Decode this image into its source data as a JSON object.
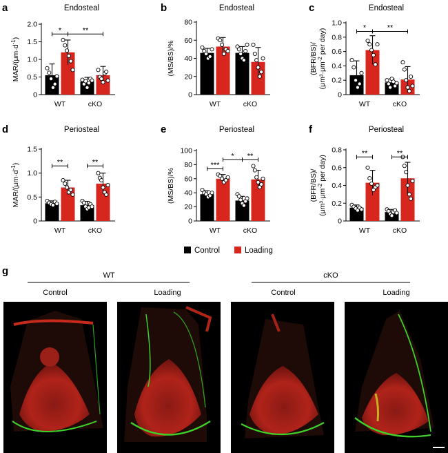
{
  "colors": {
    "control": "#000000",
    "loading": "#d7261e",
    "micrograph_bg": "#000000"
  },
  "chart_data": [
    {
      "panel": "a",
      "type": "bar",
      "title": "Endosteal",
      "ylabel": [
        "MAR/(μm·d",
        "-1",
        ")"
      ],
      "categories": [
        "WT",
        "cKO"
      ],
      "ylim": [
        0,
        2.0
      ],
      "yticks": [
        "0",
        "0.5",
        "1.0",
        "1.5",
        "2.0"
      ],
      "series": [
        {
          "name": "Control",
          "values": [
            0.55,
            0.37
          ],
          "errors": [
            0.32,
            0.12
          ],
          "points": [
            [
              0.75,
              0.62,
              0.45,
              0.2,
              0.3,
              0.52
            ],
            [
              0.42,
              0.3,
              0.38,
              0.2,
              0.33,
              0.45,
              0.4
            ]
          ]
        },
        {
          "name": "Loading",
          "values": [
            1.2,
            0.55
          ],
          "errors": [
            0.35,
            0.25
          ],
          "points": [
            [
              1.55,
              1.4,
              1.25,
              1.1,
              0.95,
              0.7
            ],
            [
              0.7,
              0.5,
              0.45,
              0.35,
              0.6,
              0.65,
              0.4
            ]
          ]
        }
      ],
      "brackets": [
        {
          "from": [
            0,
            0
          ],
          "to": [
            0,
            1
          ],
          "label": "*",
          "y": 1.72
        },
        {
          "from": [
            0,
            1
          ],
          "to": [
            1,
            1
          ],
          "label": "**",
          "y": 1.72
        }
      ]
    },
    {
      "panel": "b",
      "type": "bar",
      "title": "Endosteal",
      "ylabel": [
        "(MS/BS)/%"
      ],
      "categories": [
        "WT",
        "cKO"
      ],
      "ylim": [
        0,
        80
      ],
      "yticks": [
        "0",
        "20",
        "40",
        "60",
        "80"
      ],
      "series": [
        {
          "name": "Control",
          "values": [
            46,
            46
          ],
          "errors": [
            5,
            7
          ],
          "points": [
            [
              52,
              48,
              45,
              40,
              42,
              50
            ],
            [
              53,
              50,
              45,
              40,
              38,
              48,
              55
            ]
          ]
        },
        {
          "name": "Loading",
          "values": [
            53,
            36
          ],
          "errors": [
            10,
            16
          ],
          "points": [
            [
              62,
              60,
              55,
              45,
              50,
              48
            ],
            [
              55,
              45,
              38,
              30,
              20,
              25,
              40
            ]
          ]
        }
      ],
      "brackets": []
    },
    {
      "panel": "c",
      "type": "bar",
      "title": "Endosteal",
      "ylabel": [
        "(BFR/BS)/",
        "(μm³·μm",
        "-2",
        " per day)"
      ],
      "categories": [
        "WT",
        "cKO"
      ],
      "ylim": [
        0,
        1.0
      ],
      "yticks": [
        "0",
        "0.2",
        "0.4",
        "0.6",
        "0.8",
        "1.0"
      ],
      "series": [
        {
          "name": "Control",
          "values": [
            0.27,
            0.17
          ],
          "errors": [
            0.2,
            0.05
          ],
          "points": [
            [
              0.48,
              0.38,
              0.2,
              0.1,
              0.15,
              0.3
            ],
            [
              0.2,
              0.15,
              0.1,
              0.22,
              0.18,
              0.12,
              0.16
            ]
          ]
        },
        {
          "name": "Loading",
          "values": [
            0.62,
            0.21
          ],
          "errors": [
            0.2,
            0.18
          ],
          "points": [
            [
              0.75,
              0.7,
              0.62,
              0.55,
              0.42,
              0.7
            ],
            [
              0.45,
              0.35,
              0.2,
              0.1,
              0.05,
              0.25,
              0.12
            ]
          ]
        }
      ],
      "brackets": [
        {
          "from": [
            0,
            0
          ],
          "to": [
            0,
            1
          ],
          "label": "*",
          "y": 0.88
        },
        {
          "from": [
            0,
            1
          ],
          "to": [
            1,
            1
          ],
          "label": "**",
          "y": 0.88
        }
      ]
    },
    {
      "panel": "d",
      "type": "bar",
      "title": "Periosteal",
      "ylabel": [
        "MAR/(μm·d",
        "-1",
        ")"
      ],
      "categories": [
        "WT",
        "cKO"
      ],
      "ylim": [
        0,
        1.5
      ],
      "yticks": [
        "0",
        "0.5",
        "1.0",
        "1.5"
      ],
      "series": [
        {
          "name": "Control",
          "values": [
            0.37,
            0.33
          ],
          "errors": [
            0.05,
            0.08
          ],
          "points": [
            [
              0.42,
              0.38,
              0.35,
              0.33,
              0.4,
              0.36
            ],
            [
              0.42,
              0.38,
              0.3,
              0.25,
              0.28,
              0.35,
              0.3
            ]
          ]
        },
        {
          "name": "Loading",
          "values": [
            0.7,
            0.78
          ],
          "errors": [
            0.15,
            0.22
          ],
          "points": [
            [
              0.85,
              0.78,
              0.7,
              0.6,
              0.65,
              0.55
            ],
            [
              1.0,
              0.9,
              0.85,
              0.7,
              0.6,
              0.55,
              0.75
            ]
          ]
        }
      ],
      "brackets": [
        {
          "from": [
            0,
            0
          ],
          "to": [
            0,
            1
          ],
          "label": "**",
          "y": 1.15
        },
        {
          "from": [
            1,
            0
          ],
          "to": [
            1,
            1
          ],
          "label": "**",
          "y": 1.15
        }
      ]
    },
    {
      "panel": "e",
      "type": "bar",
      "title": "Periosteal",
      "ylabel": [
        "(MS/BS)/%"
      ],
      "categories": [
        "WT",
        "cKO"
      ],
      "ylim": [
        0,
        100
      ],
      "yticks": [
        "0",
        "20",
        "40",
        "60",
        "80",
        "100"
      ],
      "series": [
        {
          "name": "Control",
          "values": [
            38,
            29
          ],
          "errors": [
            5,
            6
          ],
          "points": [
            [
              44,
              40,
              38,
              34,
              36,
              40
            ],
            [
              38,
              35,
              30,
              25,
              22,
              28,
              32
            ]
          ]
        },
        {
          "name": "Loading",
          "values": [
            60,
            59
          ],
          "errors": [
            6,
            13
          ],
          "points": [
            [
              66,
              64,
              60,
              55,
              58,
              62
            ],
            [
              78,
              72,
              62,
              55,
              48,
              52,
              60
            ]
          ]
        }
      ],
      "brackets": [
        {
          "from": [
            0,
            0
          ],
          "to": [
            0,
            1
          ],
          "label": "***",
          "y": 74
        },
        {
          "from": [
            1,
            0
          ],
          "to": [
            1,
            1
          ],
          "label": "**",
          "y": 87
        },
        {
          "from": [
            0,
            1
          ],
          "to": [
            1,
            0
          ],
          "label": "*",
          "y": 87
        }
      ]
    },
    {
      "panel": "f",
      "type": "bar",
      "title": "Periosteal",
      "ylabel": [
        "(BFR/BS)/",
        "(μm³·μm",
        "-2",
        " per day)"
      ],
      "categories": [
        "WT",
        "cKO"
      ],
      "ylim": [
        0,
        0.8
      ],
      "yticks": [
        "0",
        "0.2",
        "0.4",
        "0.6",
        "0.8"
      ],
      "series": [
        {
          "name": "Control",
          "values": [
            0.15,
            0.1
          ],
          "errors": [
            0.03,
            0.03
          ],
          "points": [
            [
              0.18,
              0.16,
              0.14,
              0.12,
              0.15,
              0.13
            ],
            [
              0.13,
              0.11,
              0.08,
              0.06,
              0.1,
              0.12,
              0.09
            ]
          ]
        },
        {
          "name": "Loading",
          "values": [
            0.43,
            0.48
          ],
          "errors": [
            0.14,
            0.18
          ],
          "points": [
            [
              0.6,
              0.48,
              0.42,
              0.35,
              0.38,
              0.4
            ],
            [
              0.72,
              0.62,
              0.55,
              0.4,
              0.3,
              0.25,
              0.45
            ]
          ]
        }
      ],
      "brackets": [
        {
          "from": [
            0,
            0
          ],
          "to": [
            0,
            1
          ],
          "label": "**",
          "y": 0.72
        },
        {
          "from": [
            1,
            0
          ],
          "to": [
            1,
            1
          ],
          "label": "**",
          "y": 0.72
        }
      ]
    }
  ],
  "legend": [
    {
      "label": "Control"
    },
    {
      "label": "Loading"
    }
  ],
  "panel_g": {
    "label": "g",
    "groups": [
      {
        "label": "WT",
        "sub": [
          "Control",
          "Loading"
        ]
      },
      {
        "label": "cKO",
        "sub": [
          "Control",
          "Loading"
        ]
      }
    ]
  }
}
